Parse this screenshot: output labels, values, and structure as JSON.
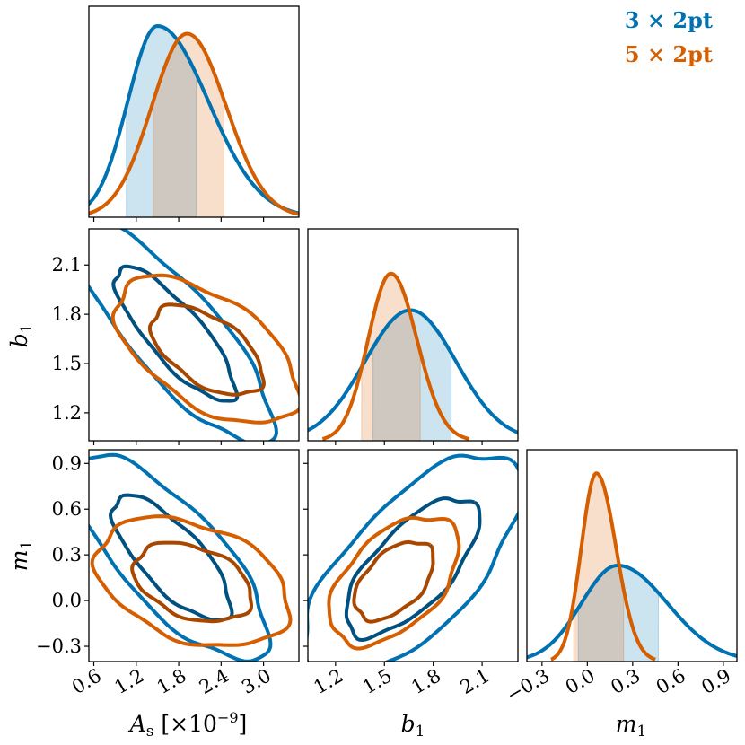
{
  "legend": {
    "entries": [
      {
        "label": "3 × 2pt",
        "color": "#0072b2"
      },
      {
        "label": "5 × 2pt",
        "color": "#d55e00"
      }
    ]
  },
  "axes": {
    "As": {
      "label": "As [×10^-9]",
      "ticks": [
        0.6,
        1.2,
        1.8,
        2.4,
        3.0
      ],
      "tick_labels": [
        "0.6",
        "1.2",
        "1.8",
        "2.4",
        "3.0"
      ],
      "range": [
        0.53,
        3.5
      ]
    },
    "b1": {
      "label": "b1",
      "ticks": [
        1.2,
        1.5,
        1.8,
        2.1
      ],
      "tick_labels": [
        "1.2",
        "1.5",
        "1.8",
        "2.1"
      ],
      "range": [
        1.03,
        2.32
      ]
    },
    "m1": {
      "label": "m1",
      "ticks": [
        -0.3,
        0.0,
        0.3,
        0.6,
        0.9
      ],
      "tick_labels": [
        "−0.3",
        "0.0",
        "0.3",
        "0.6",
        "0.9"
      ],
      "range": [
        -0.4,
        0.99
      ]
    }
  },
  "chart_data": {
    "type": "corner",
    "parameters": [
      "As",
      "b1",
      "m1"
    ],
    "series": [
      {
        "name": "3 × 2pt",
        "color": "#0072b2",
        "dark_color": "#005080",
        "marginals": {
          "As": {
            "mode": 1.5,
            "sigma_left": 0.42,
            "sigma_right": 0.72,
            "peak": 1.0,
            "shade": [
              1.06,
              2.05
            ]
          },
          "b1": {
            "mode": 1.66,
            "sigma_left": 0.28,
            "sigma_right": 0.28,
            "peak": 0.68,
            "shade": [
              1.43,
              1.91
            ]
          },
          "m1": {
            "mode": 0.2,
            "sigma_left": 0.24,
            "sigma_right": 0.33,
            "peak": 0.5,
            "shade": [
              -0.06,
              0.47
            ]
          }
        },
        "contours": {
          "As_b1": {
            "center": [
              1.75,
              1.68
            ],
            "rho": -0.82,
            "s": [
              0.56,
              0.27
            ]
          },
          "As_m1": {
            "center": [
              1.7,
              0.28
            ],
            "rho": -0.75,
            "s": [
              0.55,
              0.27
            ]
          },
          "b1_m1": {
            "center": [
              1.67,
              0.22
            ],
            "rho": 0.68,
            "s": [
              0.27,
              0.3
            ]
          }
        }
      },
      {
        "name": "5 × 2pt",
        "color": "#d55e00",
        "dark_color": "#a84800",
        "marginals": {
          "As": {
            "mode": 1.92,
            "sigma_left": 0.5,
            "sigma_right": 0.55,
            "peak": 0.96,
            "shade": [
              1.44,
              2.44
            ]
          },
          "b1": {
            "mode": 1.54,
            "sigma_left": 0.14,
            "sigma_right": 0.16,
            "peak": 0.87,
            "shade": [
              1.36,
              1.72
            ]
          },
          "m1": {
            "mode": 0.06,
            "sigma_left": 0.1,
            "sigma_right": 0.13,
            "peak": 0.98,
            "shade": [
              -0.09,
              0.24
            ]
          }
        },
        "contours": {
          "As_b1": {
            "center": [
              2.2,
              1.58
            ],
            "rho": -0.55,
            "s": [
              0.52,
              0.18
            ]
          },
          "As_m1": {
            "center": [
              2.0,
              0.12
            ],
            "rho": -0.35,
            "s": [
              0.55,
              0.17
            ]
          },
          "b1_m1": {
            "center": [
              1.56,
              0.13
            ],
            "rho": 0.5,
            "s": [
              0.16,
              0.17
            ]
          }
        }
      }
    ],
    "contour_levels": [
      "68%",
      "95%"
    ]
  }
}
